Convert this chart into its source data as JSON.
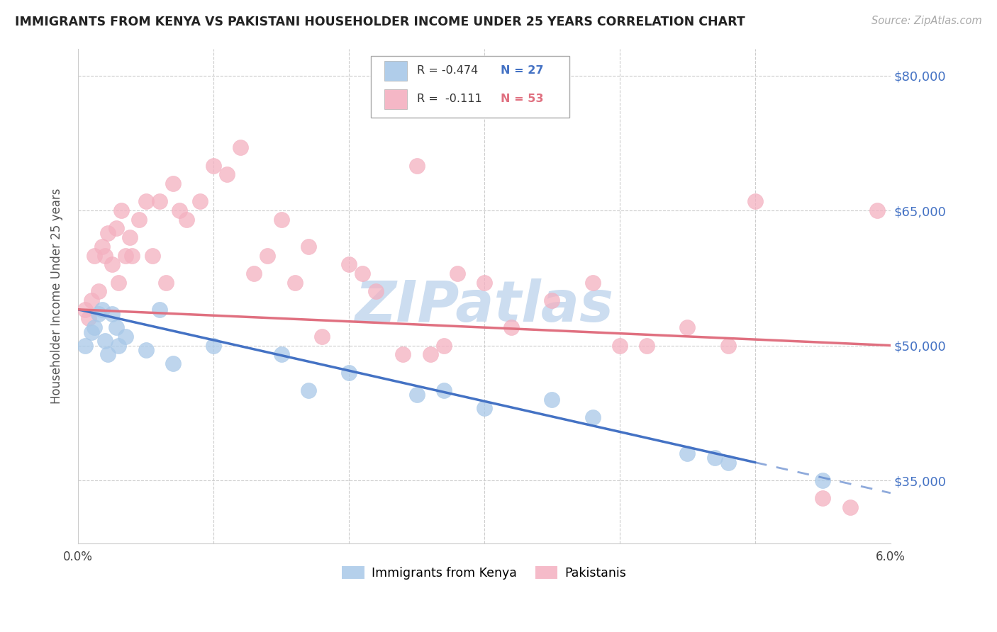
{
  "title": "IMMIGRANTS FROM KENYA VS PAKISTANI HOUSEHOLDER INCOME UNDER 25 YEARS CORRELATION CHART",
  "source": "Source: ZipAtlas.com",
  "ylabel": "Householder Income Under 25 years",
  "xlim": [
    0.0,
    6.0
  ],
  "ylim": [
    28000,
    83000
  ],
  "yticks": [
    35000,
    50000,
    65000,
    80000
  ],
  "ytick_labels": [
    "$35,000",
    "$50,000",
    "$65,000",
    "$80,000"
  ],
  "xticks": [
    0.0,
    1.0,
    2.0,
    3.0,
    4.0,
    5.0,
    6.0
  ],
  "kenya_R": -0.474,
  "kenya_N": 27,
  "pakistan_R": -0.111,
  "pakistan_N": 53,
  "kenya_color": "#a8c8e8",
  "pakistan_color": "#f4b0c0",
  "kenya_line_color": "#4472c4",
  "pakistan_line_color": "#e07080",
  "watermark": "ZIPatlas",
  "watermark_color": "#ccddf0",
  "kenya_line_x0": 0.0,
  "kenya_line_y0": 54000,
  "kenya_line_x1": 5.0,
  "kenya_line_y1": 37000,
  "pakistan_line_x0": 0.0,
  "pakistan_line_y0": 54000,
  "pakistan_line_x1": 6.0,
  "pakistan_line_y1": 50000,
  "kenya_scatter_x": [
    0.05,
    0.1,
    0.12,
    0.15,
    0.18,
    0.2,
    0.22,
    0.25,
    0.28,
    0.3,
    0.35,
    0.5,
    0.6,
    0.7,
    1.0,
    1.5,
    1.7,
    2.0,
    2.5,
    2.7,
    3.0,
    3.5,
    3.8,
    4.5,
    4.7,
    4.8,
    5.5
  ],
  "kenya_scatter_y": [
    50000,
    51500,
    52000,
    53500,
    54000,
    50500,
    49000,
    53500,
    52000,
    50000,
    51000,
    49500,
    54000,
    48000,
    50000,
    49000,
    45000,
    47000,
    44500,
    45000,
    43000,
    44000,
    42000,
    38000,
    37500,
    37000,
    35000
  ],
  "pakistan_scatter_x": [
    0.05,
    0.08,
    0.1,
    0.12,
    0.15,
    0.18,
    0.2,
    0.22,
    0.25,
    0.28,
    0.3,
    0.32,
    0.35,
    0.38,
    0.4,
    0.45,
    0.5,
    0.55,
    0.6,
    0.65,
    0.7,
    0.75,
    0.8,
    0.9,
    1.0,
    1.1,
    1.2,
    1.3,
    1.4,
    1.5,
    1.6,
    1.7,
    1.8,
    2.0,
    2.1,
    2.2,
    2.4,
    2.5,
    2.6,
    2.7,
    2.8,
    3.0,
    3.2,
    3.5,
    3.8,
    4.0,
    4.2,
    4.5,
    4.8,
    5.0,
    5.5,
    5.7,
    5.9
  ],
  "pakistan_scatter_y": [
    54000,
    53000,
    55000,
    60000,
    56000,
    61000,
    60000,
    62500,
    59000,
    63000,
    57000,
    65000,
    60000,
    62000,
    60000,
    64000,
    66000,
    60000,
    66000,
    57000,
    68000,
    65000,
    64000,
    66000,
    70000,
    69000,
    72000,
    58000,
    60000,
    64000,
    57000,
    61000,
    51000,
    59000,
    58000,
    56000,
    49000,
    70000,
    49000,
    50000,
    58000,
    57000,
    52000,
    55000,
    57000,
    50000,
    50000,
    52000,
    50000,
    66000,
    33000,
    32000,
    65000
  ]
}
